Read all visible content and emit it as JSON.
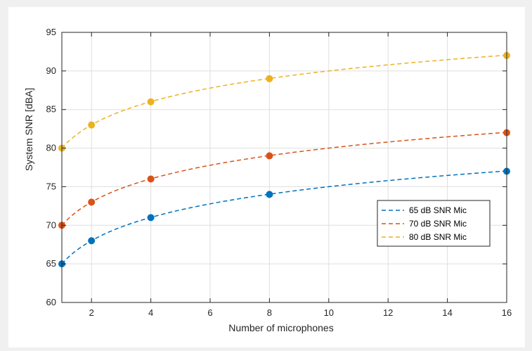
{
  "chart_data": {
    "type": "line",
    "title": "",
    "xlabel": "Number of microphones",
    "ylabel": "System SNR [dBA]",
    "xlim": [
      1,
      16
    ],
    "ylim": [
      60,
      95
    ],
    "x_ticks": [
      2,
      4,
      6,
      8,
      10,
      12,
      14,
      16
    ],
    "y_ticks": [
      60,
      65,
      70,
      75,
      80,
      85,
      90,
      95
    ],
    "grid": true,
    "legend_position": "right",
    "markers_x": [
      1,
      2,
      4,
      8,
      16
    ],
    "series": [
      {
        "name": "65 dB SNR Mic",
        "color": "#0072BD",
        "base": 65,
        "values": [
          65,
          68,
          71,
          74,
          77
        ]
      },
      {
        "name": "70 dB SNR Mic",
        "color": "#D95319",
        "base": 70,
        "values": [
          70,
          73,
          76,
          79,
          82
        ]
      },
      {
        "name": "80 dB SNR Mic",
        "color": "#EDB120",
        "base": 80,
        "values": [
          80,
          83,
          86,
          89,
          92
        ]
      }
    ]
  }
}
